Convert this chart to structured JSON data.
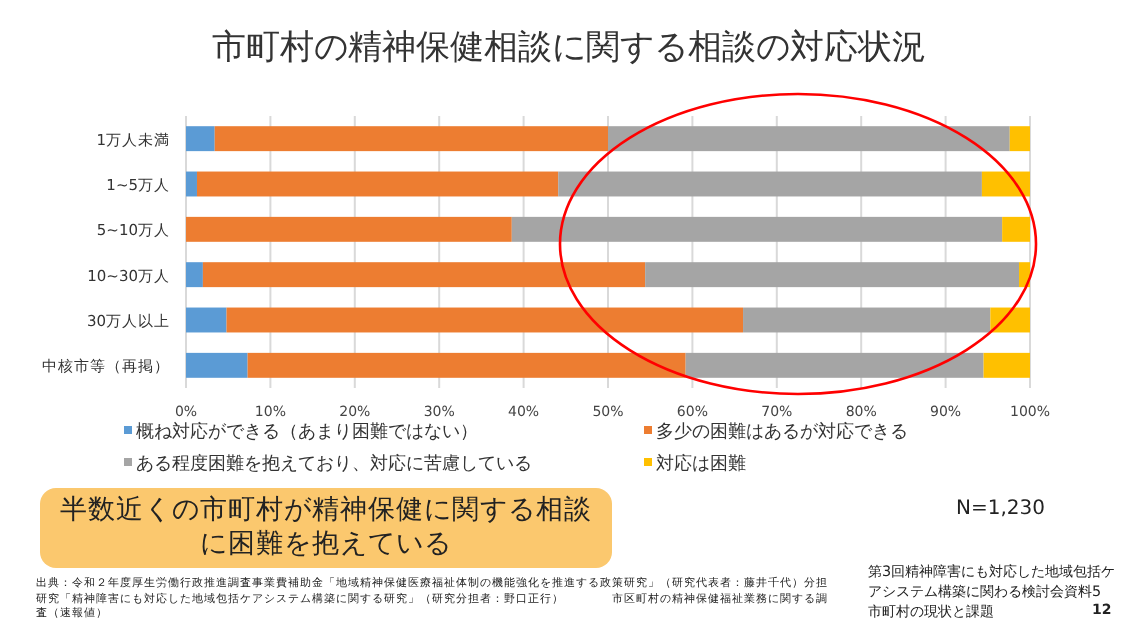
{
  "chart_data": {
    "type": "bar",
    "orientation": "horizontal",
    "stacked": true,
    "title": "市町村の精神保健相談に関する相談の対応状況",
    "categories": [
      "1万人未満",
      "1~5万人",
      "5~10万人",
      "10~30万人",
      "30万人以上",
      "中核市等（再掲）"
    ],
    "series": [
      {
        "name": "概ね対応ができる（あまり困難ではない）",
        "color": "#5b9bd5",
        "values": [
          3.4,
          1.3,
          0,
          2.0,
          4.8,
          7.3
        ]
      },
      {
        "name": "多少の困難はあるが対応できる",
        "color": "#ed7d31",
        "values": [
          46.6,
          42.8,
          38.6,
          52.4,
          61.2,
          51.9
        ]
      },
      {
        "name": "ある程度困難を抱えており、対応に苦慮している",
        "color": "#a5a5a5",
        "values": [
          47.6,
          50.2,
          58.1,
          44.3,
          29.3,
          35.3
        ]
      },
      {
        "name": "対応は困難",
        "color": "#ffc000",
        "values": [
          2.4,
          5.7,
          3.3,
          1.3,
          4.7,
          5.5
        ]
      }
    ],
    "xlim": [
      0,
      100
    ],
    "xticks": [
      {
        "value": 0,
        "label": "0%"
      },
      {
        "value": 10,
        "label": "10%"
      },
      {
        "value": 20,
        "label": "20%"
      },
      {
        "value": 30,
        "label": "30%"
      },
      {
        "value": 40,
        "label": "40%"
      },
      {
        "value": 50,
        "label": "50%"
      },
      {
        "value": 60,
        "label": "60%"
      },
      {
        "value": 70,
        "label": "70%"
      },
      {
        "value": 80,
        "label": "80%"
      },
      {
        "value": 90,
        "label": "90%"
      },
      {
        "value": 100,
        "label": "100%"
      }
    ],
    "grid": "x",
    "legend": "bottom",
    "annotations": [
      "半数近くの市町村が精神保健に関する相談に困難を抱えている",
      "N=1,230",
      "出典：令和２年度厚生労働行政推進調査事業費補助金「地域精神保健医療福祉体制の機能強化を推進する政策研究」（研究代表者：藤井千代）分担研究「精神障害にも対応した地域包括ケアシステム構築に関する研究」（研究分担者：野口正行）　　　　市区町村の精神保健福祉業務に関する調査（速報値）",
      "第3回精神障害にも対応した地域包括ケアシステム構築に関わる検討会資料5 市町村の現状と課題",
      "12"
    ]
  }
}
